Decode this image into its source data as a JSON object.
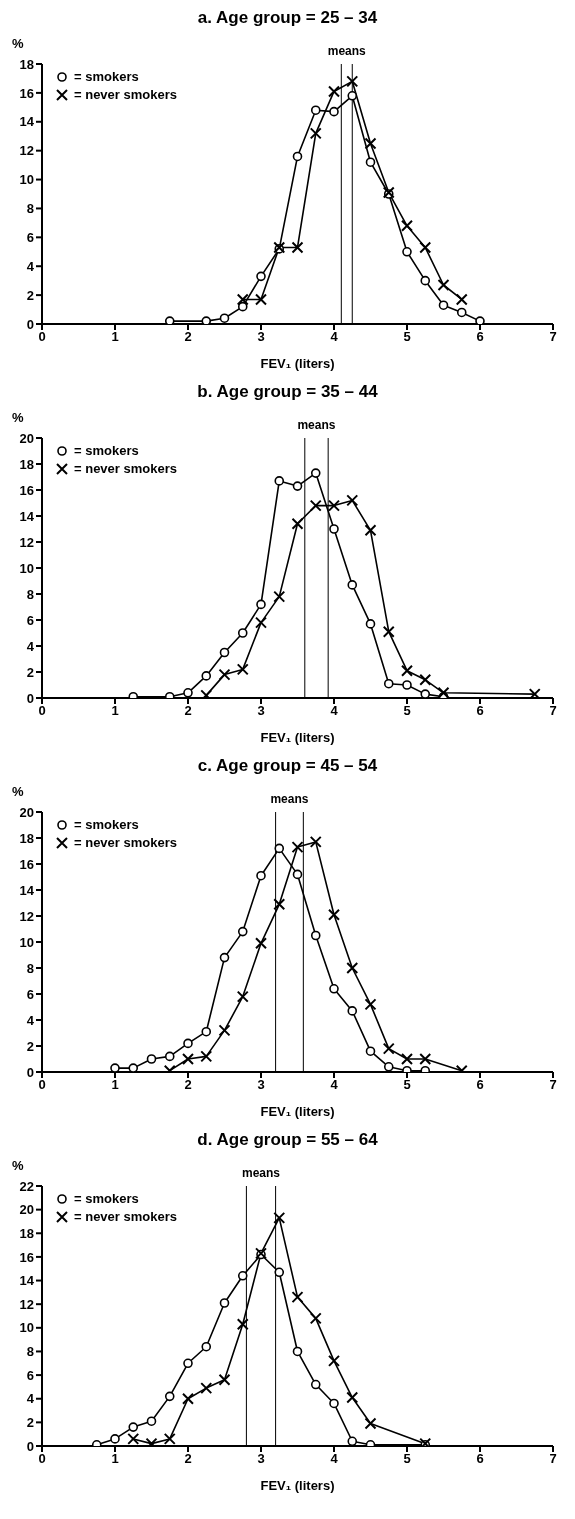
{
  "chart_data": [
    {
      "type": "line",
      "title": "a. Age group = 25 – 34",
      "xlabel": "FEV₁ (liters)",
      "ylabel": "%",
      "xlim": [
        0,
        7
      ],
      "xticks": [
        0,
        1,
        2,
        3,
        4,
        5,
        6,
        7
      ],
      "ylim": [
        0,
        18
      ],
      "yticks": [
        0,
        2,
        4,
        6,
        8,
        10,
        12,
        14,
        16,
        18
      ],
      "legend": "top left",
      "annotations": [
        "means"
      ],
      "ref_lines": [
        {
          "axis": "x",
          "value": 4.1,
          "color": "#000000"
        },
        {
          "axis": "x",
          "value": 4.25,
          "color": "#000000"
        }
      ],
      "series": [
        {
          "name": "= smokers",
          "color": "#000000",
          "marker": "circle",
          "x": [
            1.75,
            2.25,
            2.5,
            2.75,
            3,
            3.25,
            3.5,
            3.75,
            4,
            4.25,
            4.5,
            4.75,
            5,
            5.25,
            5.5,
            5.75,
            6
          ],
          "values": [
            0.2,
            0.2,
            0.4,
            1.2,
            3.3,
            5.2,
            11.6,
            14.8,
            14.7,
            15.8,
            11.2,
            9.0,
            5.0,
            3.0,
            1.3,
            0.8,
            0.2
          ]
        },
        {
          "name": "= never smokers",
          "color": "#000000",
          "marker": "cross",
          "x": [
            2.75,
            3,
            3.25,
            3.5,
            3.75,
            4,
            4.25,
            4.5,
            4.75,
            5,
            5.25,
            5.5,
            5.75
          ],
          "values": [
            1.7,
            1.7,
            5.3,
            5.3,
            13.2,
            16.1,
            16.8,
            12.5,
            9.1,
            6.8,
            5.3,
            2.7,
            1.7
          ]
        }
      ]
    },
    {
      "type": "line",
      "title": "b. Age group = 35 – 44",
      "xlabel": "FEV₁ (liters)",
      "ylabel": "%",
      "xlim": [
        0,
        7
      ],
      "xticks": [
        0,
        1,
        2,
        3,
        4,
        5,
        6,
        7
      ],
      "ylim": [
        0,
        20
      ],
      "yticks": [
        0,
        2,
        4,
        6,
        8,
        10,
        12,
        14,
        16,
        18,
        20
      ],
      "legend": "top left",
      "annotations": [
        "means"
      ],
      "ref_lines": [
        {
          "axis": "x",
          "value": 3.6,
          "color": "#000000"
        },
        {
          "axis": "x",
          "value": 3.92,
          "color": "#000000"
        }
      ],
      "series": [
        {
          "name": "= smokers",
          "color": "#000000",
          "marker": "circle",
          "x": [
            1.25,
            1.75,
            2,
            2.25,
            2.5,
            2.75,
            3,
            3.25,
            3.5,
            3.75,
            4,
            4.25,
            4.5,
            4.75,
            5,
            5.25,
            5.5
          ],
          "values": [
            0.1,
            0.1,
            0.4,
            1.7,
            3.5,
            5.0,
            7.2,
            16.7,
            16.3,
            17.3,
            13.0,
            8.7,
            5.7,
            1.1,
            1.0,
            0.3,
            0.1
          ]
        },
        {
          "name": "= never smokers",
          "color": "#000000",
          "marker": "cross",
          "x": [
            2.25,
            2.5,
            2.75,
            3,
            3.25,
            3.5,
            3.75,
            4,
            4.25,
            4.5,
            4.75,
            5,
            5.25,
            5.5,
            6.75
          ],
          "values": [
            0.2,
            1.8,
            2.2,
            5.8,
            7.8,
            13.4,
            14.8,
            14.8,
            15.2,
            12.9,
            5.1,
            2.1,
            1.4,
            0.4,
            0.3
          ]
        }
      ]
    },
    {
      "type": "line",
      "title": "c. Age group = 45 – 54",
      "xlabel": "FEV₁ (liters)",
      "ylabel": "%",
      "xlim": [
        0,
        7
      ],
      "xticks": [
        0,
        1,
        2,
        3,
        4,
        5,
        6,
        7
      ],
      "ylim": [
        0,
        20
      ],
      "yticks": [
        0,
        2,
        4,
        6,
        8,
        10,
        12,
        14,
        16,
        18,
        20
      ],
      "legend": "top left",
      "annotations": [
        "means"
      ],
      "ref_lines": [
        {
          "axis": "x",
          "value": 3.2,
          "color": "#000000"
        },
        {
          "axis": "x",
          "value": 3.58,
          "color": "#000000"
        }
      ],
      "series": [
        {
          "name": "= smokers",
          "color": "#000000",
          "marker": "circle",
          "x": [
            1,
            1.25,
            1.5,
            1.75,
            2,
            2.25,
            2.5,
            2.75,
            3,
            3.25,
            3.5,
            3.75,
            4,
            4.25,
            4.5,
            4.75,
            5,
            5.25
          ],
          "values": [
            0.3,
            0.3,
            1.0,
            1.2,
            2.2,
            3.1,
            8.8,
            10.8,
            15.1,
            17.2,
            15.2,
            10.5,
            6.4,
            4.7,
            1.6,
            0.4,
            0.1,
            0.1
          ]
        },
        {
          "name": "= never smokers",
          "color": "#000000",
          "marker": "cross",
          "x": [
            1.75,
            2,
            2.25,
            2.5,
            2.75,
            3,
            3.25,
            3.5,
            3.75,
            4,
            4.25,
            4.5,
            4.75,
            5,
            5.25,
            5.75
          ],
          "values": [
            0.1,
            1.0,
            1.2,
            3.2,
            5.8,
            9.9,
            12.9,
            17.3,
            17.7,
            12.1,
            8.0,
            5.2,
            1.8,
            1.0,
            1.0,
            0.1
          ]
        }
      ]
    },
    {
      "type": "line",
      "title": "d. Age group = 55 – 64",
      "xlabel": "FEV₁ (liters)",
      "ylabel": "%",
      "xlim": [
        0,
        7
      ],
      "xticks": [
        0,
        1,
        2,
        3,
        4,
        5,
        6,
        7
      ],
      "ylim": [
        0,
        22
      ],
      "yticks": [
        0,
        2,
        4,
        6,
        8,
        10,
        12,
        14,
        16,
        18,
        20,
        22
      ],
      "legend": "top left",
      "annotations": [
        "means"
      ],
      "ref_lines": [
        {
          "axis": "x",
          "value": 2.8,
          "color": "#000000"
        },
        {
          "axis": "x",
          "value": 3.2,
          "color": "#000000"
        }
      ],
      "series": [
        {
          "name": "= smokers",
          "color": "#000000",
          "marker": "circle",
          "x": [
            0.75,
            1,
            1.25,
            1.5,
            1.75,
            2,
            2.25,
            2.5,
            2.75,
            3,
            3.25,
            3.5,
            3.75,
            4,
            4.25,
            4.5,
            5.25
          ],
          "values": [
            0.1,
            0.6,
            1.6,
            2.1,
            4.2,
            7.0,
            8.4,
            12.1,
            14.4,
            16.2,
            14.7,
            8.0,
            5.2,
            3.6,
            0.4,
            0.1,
            0.1
          ]
        },
        {
          "name": "= never smokers",
          "color": "#000000",
          "marker": "cross",
          "x": [
            1.25,
            1.5,
            1.75,
            2,
            2.25,
            2.5,
            2.75,
            3,
            3.25,
            3.5,
            3.75,
            4,
            4.25,
            4.5,
            5.25
          ],
          "values": [
            0.6,
            0.2,
            0.6,
            4.0,
            4.9,
            5.6,
            10.3,
            16.3,
            19.3,
            12.6,
            10.8,
            7.2,
            4.1,
            1.9,
            0.2
          ]
        }
      ]
    }
  ]
}
